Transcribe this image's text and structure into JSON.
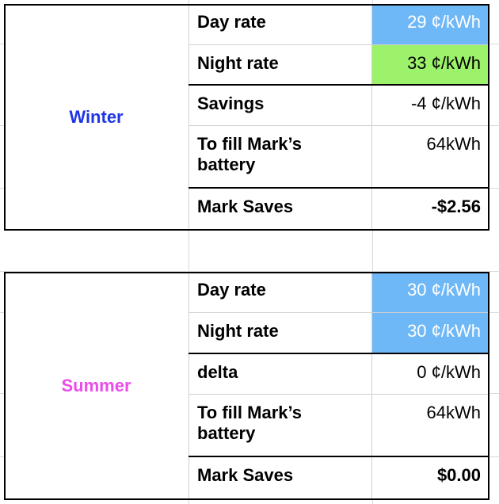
{
  "colors": {
    "rate_highlight_blue": "#6fb8f7",
    "rate_highlight_green": "#9cf26a",
    "winter_label": "#1f35e6",
    "summer_label": "#ea4cea"
  },
  "winter": {
    "season_label": "Winter",
    "day_rate_label": "Day rate",
    "day_rate_value": "29 ¢/kWh",
    "night_rate_label": "Night rate",
    "night_rate_value": "33 ¢/kWh",
    "savings_label": "Savings",
    "savings_value": "-4 ¢/kWh",
    "fill_label": "To fill Mark’s battery",
    "fill_value": "64kWh",
    "saves_label": "Mark Saves",
    "saves_value": "-$2.56"
  },
  "summer": {
    "season_label": "Summer",
    "day_rate_label": "Day rate",
    "day_rate_value": "30 ¢/kWh",
    "night_rate_label": "Night rate",
    "night_rate_value": "30 ¢/kWh",
    "delta_label": "delta",
    "delta_value": "0 ¢/kWh",
    "fill_label": "To fill Mark’s battery",
    "fill_value": "64kWh",
    "saves_label": "Mark Saves",
    "saves_value": "$0.00"
  }
}
